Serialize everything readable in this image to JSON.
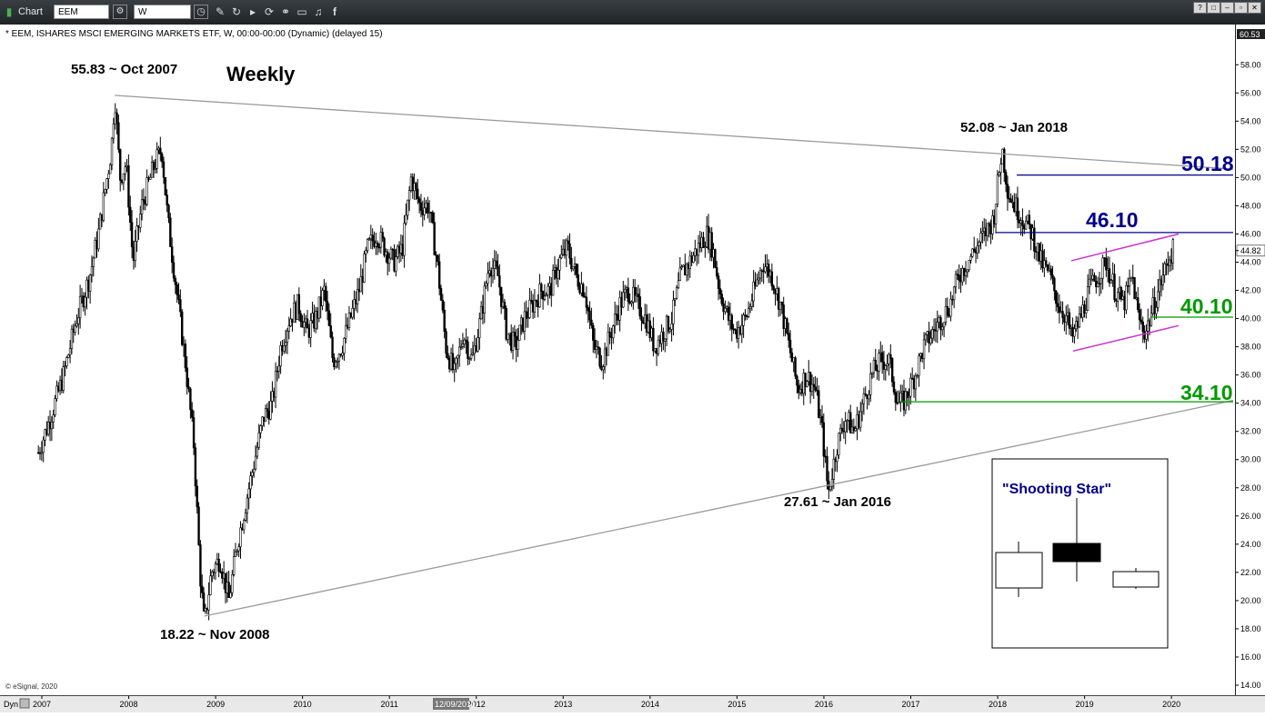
{
  "toolbar": {
    "app_label": "Chart",
    "symbol": "EEM",
    "interval": "W",
    "window_buttons": [
      "?",
      "□",
      "–",
      "▫",
      "✕"
    ]
  },
  "chart_header": "* EEM, ISHARES MSCI EMERGING MARKETS ETF, W, 00:00-00:00 (Dynamic) (delayed 15)",
  "watermark": "© eSignal, 2020",
  "time_axis_left": "Dyn",
  "time_axis_cursor": "12/09/2011",
  "chart_data": {
    "type": "candlestick",
    "title": "Weekly",
    "ylim": [
      14,
      60.53
    ],
    "y_ticks": [
      "60.53",
      "58.00",
      "56.00",
      "54.00",
      "52.00",
      "50.00",
      "48.00",
      "46.00",
      "44.82",
      "44.00",
      "42.00",
      "40.00",
      "38.00",
      "36.00",
      "34.00",
      "32.00",
      "30.00",
      "28.00",
      "26.00",
      "24.00",
      "22.00",
      "20.00",
      "18.00",
      "16.00",
      "14.00"
    ],
    "x_ticks": [
      "2007",
      "2008",
      "2009",
      "2010",
      "2011",
      "2012",
      "2013",
      "2014",
      "2015",
      "2016",
      "2017",
      "2018",
      "2019",
      "2020"
    ],
    "last_price": "44.82",
    "series_path": [
      [
        2006.96,
        30.5
      ],
      [
        2007.1,
        33
      ],
      [
        2007.25,
        36
      ],
      [
        2007.4,
        40
      ],
      [
        2007.55,
        43
      ],
      [
        2007.65,
        46
      ],
      [
        2007.8,
        52
      ],
      [
        2007.84,
        55.83
      ],
      [
        2007.9,
        50
      ],
      [
        2007.97,
        51
      ],
      [
        2008.05,
        44
      ],
      [
        2008.15,
        48
      ],
      [
        2008.3,
        51
      ],
      [
        2008.38,
        52
      ],
      [
        2008.45,
        47
      ],
      [
        2008.55,
        42
      ],
      [
        2008.65,
        37
      ],
      [
        2008.75,
        31
      ],
      [
        2008.82,
        22
      ],
      [
        2008.87,
        18.22
      ],
      [
        2008.95,
        22
      ],
      [
        2009.05,
        23
      ],
      [
        2009.15,
        20
      ],
      [
        2009.25,
        24
      ],
      [
        2009.35,
        27
      ],
      [
        2009.45,
        30
      ],
      [
        2009.55,
        33
      ],
      [
        2009.65,
        34
      ],
      [
        2009.75,
        38
      ],
      [
        2009.85,
        40
      ],
      [
        2009.95,
        41
      ],
      [
        2010.05,
        39
      ],
      [
        2010.15,
        40
      ],
      [
        2010.25,
        42
      ],
      [
        2010.35,
        37
      ],
      [
        2010.45,
        38
      ],
      [
        2010.55,
        40
      ],
      [
        2010.65,
        42
      ],
      [
        2010.75,
        45
      ],
      [
        2010.85,
        46
      ],
      [
        2010.95,
        45
      ],
      [
        2011.05,
        44
      ],
      [
        2011.15,
        45
      ],
      [
        2011.25,
        50
      ],
      [
        2011.35,
        48
      ],
      [
        2011.45,
        48
      ],
      [
        2011.55,
        44
      ],
      [
        2011.65,
        38
      ],
      [
        2011.75,
        36
      ],
      [
        2011.85,
        39
      ],
      [
        2011.95,
        37
      ],
      [
        2012.05,
        40
      ],
      [
        2012.15,
        44
      ],
      [
        2012.25,
        43
      ],
      [
        2012.35,
        39
      ],
      [
        2012.45,
        38
      ],
      [
        2012.55,
        40
      ],
      [
        2012.65,
        41
      ],
      [
        2012.75,
        42
      ],
      [
        2012.85,
        42
      ],
      [
        2012.95,
        44
      ],
      [
        2013.05,
        45
      ],
      [
        2013.15,
        43
      ],
      [
        2013.25,
        42
      ],
      [
        2013.35,
        38
      ],
      [
        2013.45,
        37
      ],
      [
        2013.55,
        39
      ],
      [
        2013.65,
        41
      ],
      [
        2013.75,
        42
      ],
      [
        2013.85,
        41
      ],
      [
        2013.95,
        40
      ],
      [
        2014.05,
        38
      ],
      [
        2014.15,
        39
      ],
      [
        2014.25,
        40
      ],
      [
        2014.35,
        43
      ],
      [
        2014.45,
        44
      ],
      [
        2014.55,
        45
      ],
      [
        2014.65,
        46
      ],
      [
        2014.72,
        45
      ],
      [
        2014.8,
        42
      ],
      [
        2014.9,
        40
      ],
      [
        2014.98,
        39
      ],
      [
        2015.1,
        40
      ],
      [
        2015.2,
        42
      ],
      [
        2015.3,
        44
      ],
      [
        2015.4,
        43
      ],
      [
        2015.5,
        41
      ],
      [
        2015.6,
        38
      ],
      [
        2015.7,
        35
      ],
      [
        2015.8,
        36
      ],
      [
        2015.9,
        35
      ],
      [
        2015.98,
        32
      ],
      [
        2016.05,
        27.61
      ],
      [
        2016.15,
        31
      ],
      [
        2016.25,
        33
      ],
      [
        2016.35,
        32
      ],
      [
        2016.45,
        34
      ],
      [
        2016.55,
        36
      ],
      [
        2016.65,
        37
      ],
      [
        2016.75,
        37
      ],
      [
        2016.85,
        34
      ],
      [
        2016.92,
        34.1
      ],
      [
        2017.05,
        36
      ],
      [
        2017.15,
        38
      ],
      [
        2017.25,
        39
      ],
      [
        2017.35,
        40
      ],
      [
        2017.45,
        41
      ],
      [
        2017.55,
        43
      ],
      [
        2017.65,
        44
      ],
      [
        2017.75,
        45
      ],
      [
        2017.85,
        46
      ],
      [
        2017.95,
        47
      ],
      [
        2018.05,
        52.08
      ],
      [
        2018.12,
        49
      ],
      [
        2018.2,
        48
      ],
      [
        2018.3,
        47
      ],
      [
        2018.4,
        46
      ],
      [
        2018.5,
        44
      ],
      [
        2018.6,
        43
      ],
      [
        2018.7,
        41
      ],
      [
        2018.8,
        40
      ],
      [
        2018.85,
        38.5
      ],
      [
        2018.95,
        40
      ],
      [
        2019.05,
        42
      ],
      [
        2019.15,
        43
      ],
      [
        2019.25,
        44
      ],
      [
        2019.35,
        42
      ],
      [
        2019.45,
        41
      ],
      [
        2019.55,
        43
      ],
      [
        2019.62,
        40
      ],
      [
        2019.7,
        39
      ],
      [
        2019.8,
        41
      ],
      [
        2019.9,
        43
      ],
      [
        2019.98,
        44.5
      ],
      [
        2020.02,
        44.82
      ]
    ]
  },
  "annotations": {
    "high_2007": "55.83 ~ Oct 2007",
    "low_2008": "18.22 ~ Nov 2008",
    "high_2018": "52.08 ~ Jan 2018",
    "low_2016": "27.61 ~ Jan 2016",
    "level_50": "50.18",
    "level_46": "46.10",
    "level_40": "40.10",
    "level_34": "34.10",
    "inset_title": "\"Shooting Star\""
  },
  "colors": {
    "toolbar_bg": "#2b2f33",
    "trendline": "#9a9a9a",
    "resistance": "#00008b",
    "support": "#009900",
    "channel": "#cc33cc",
    "candles": "#000000"
  }
}
